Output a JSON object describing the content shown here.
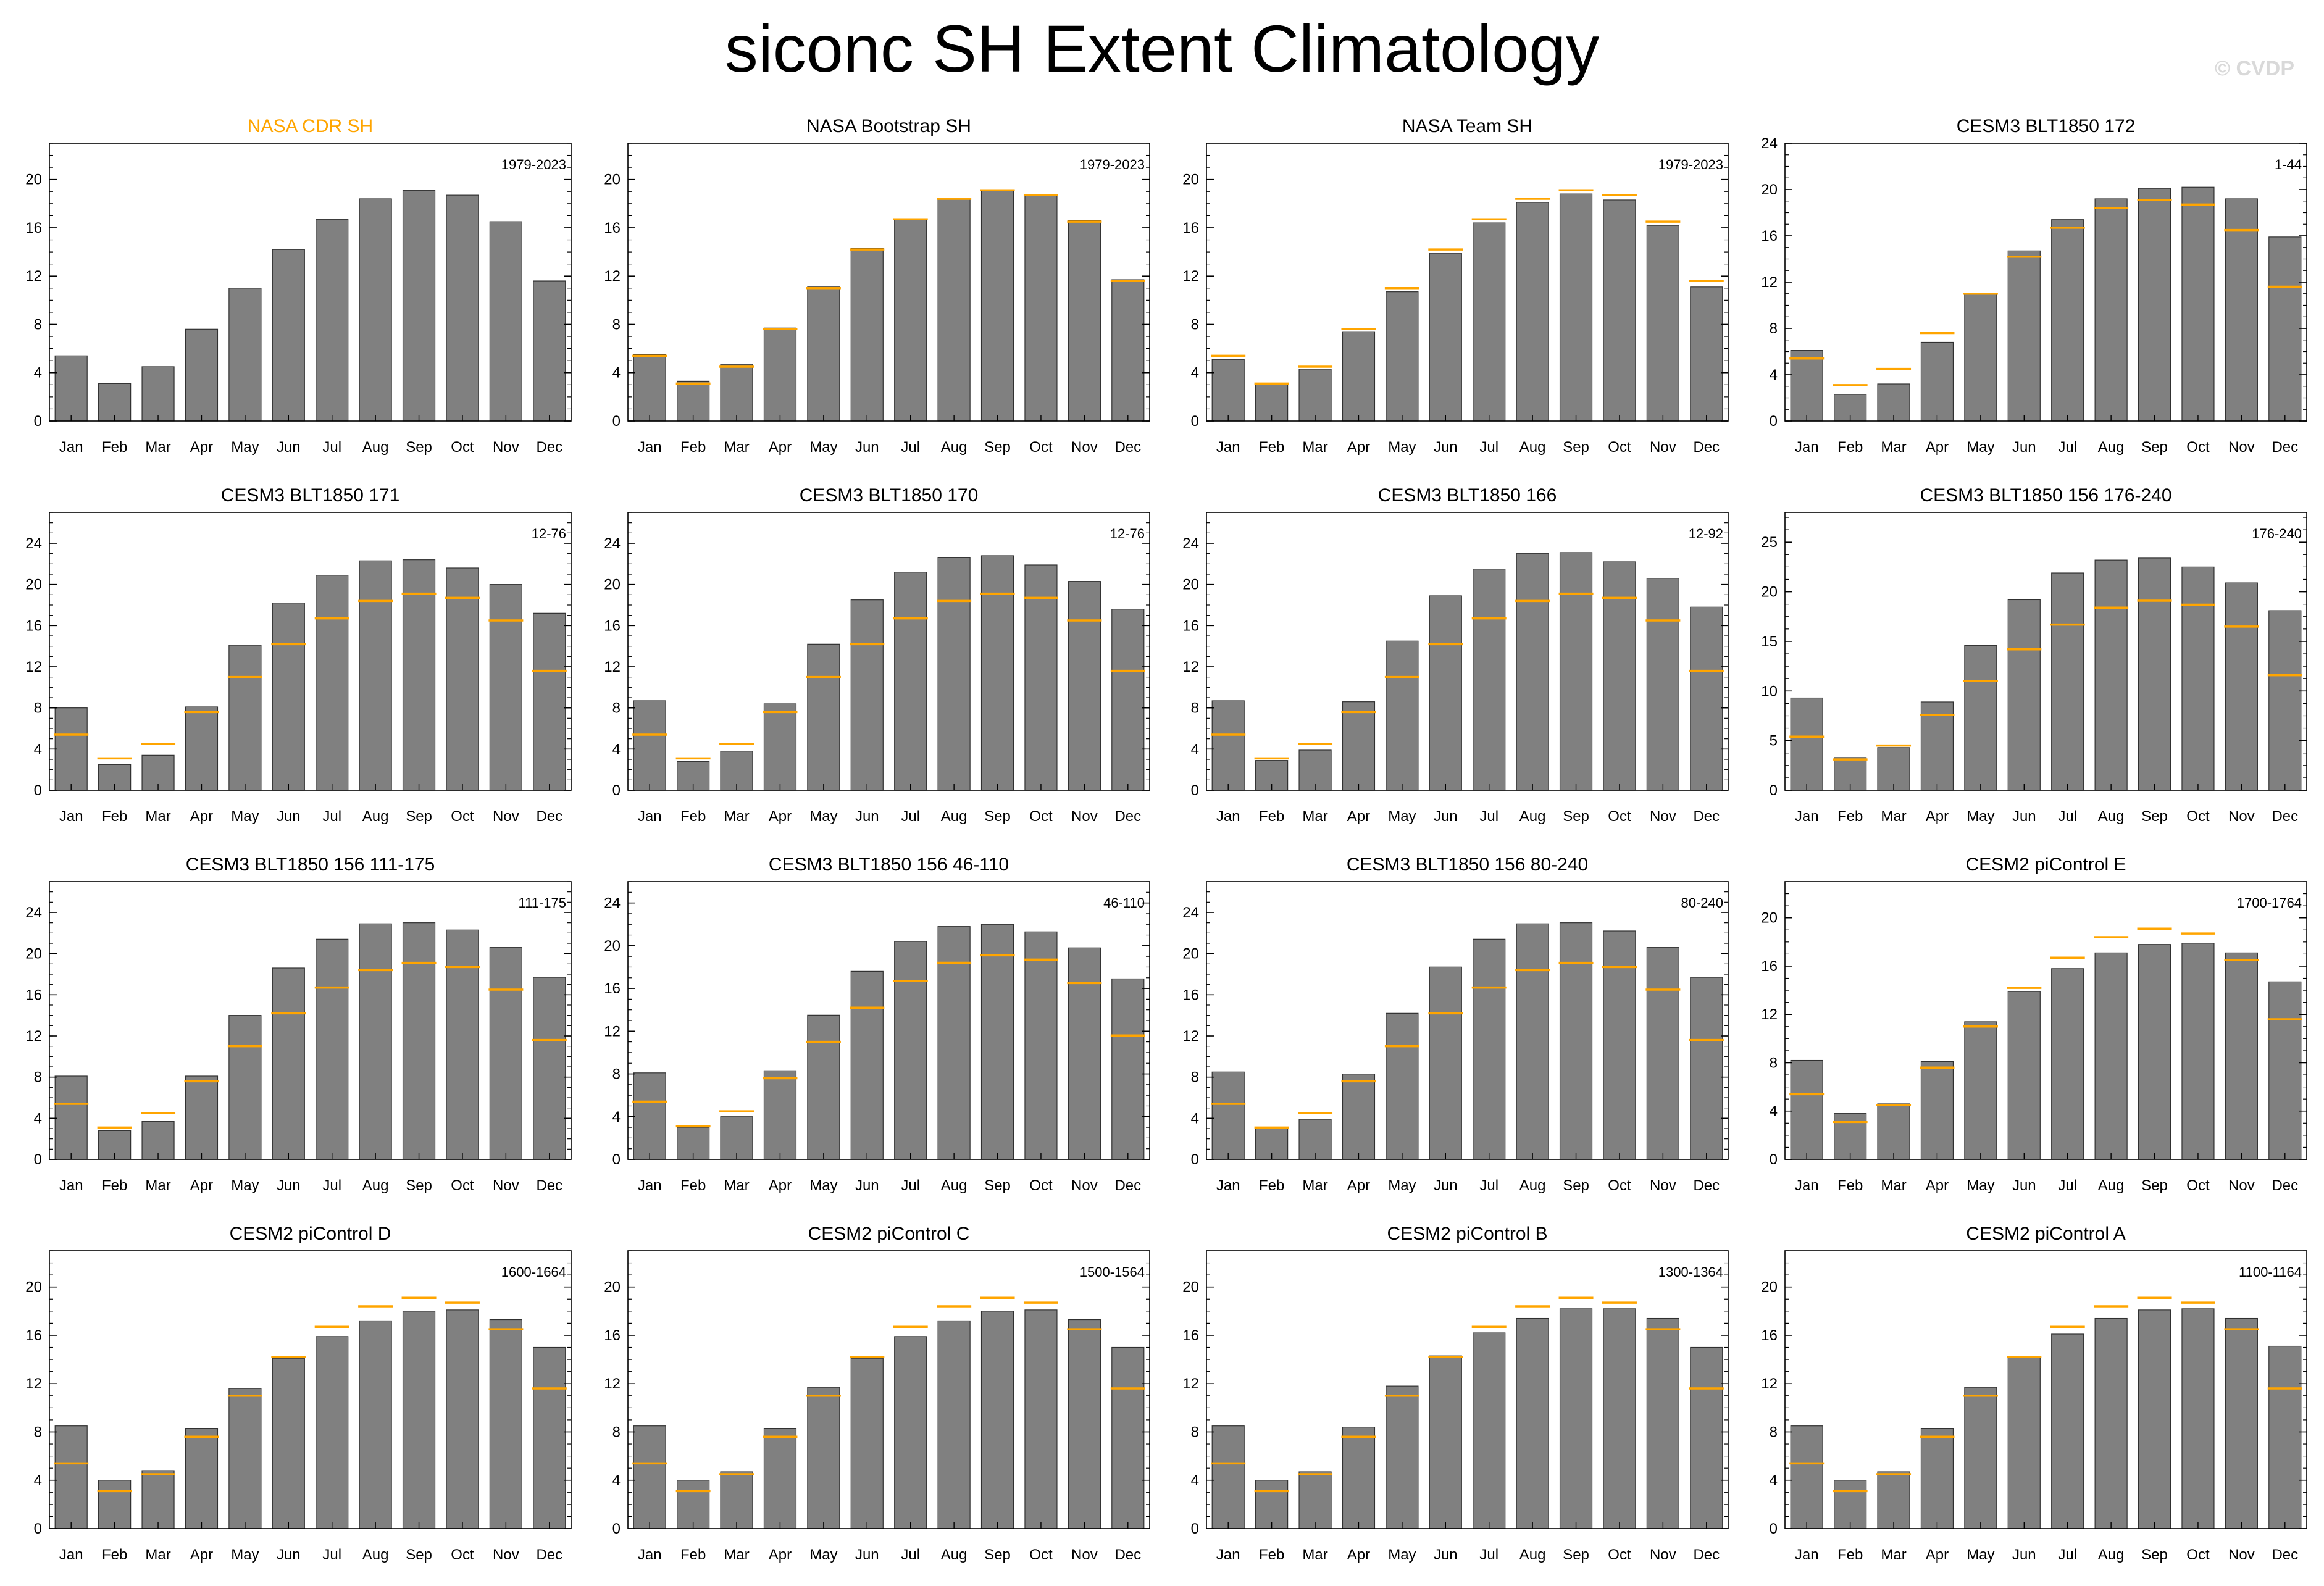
{
  "title": "siconc SH Extent Climatology",
  "watermark": "© CVDP",
  "colors": {
    "bar": "#808080",
    "bar_edge": "#303030",
    "reference": "#ffa500",
    "highlight_title": "#ffa500"
  },
  "months": [
    "Jan",
    "Feb",
    "Mar",
    "Apr",
    "May",
    "Jun",
    "Jul",
    "Aug",
    "Sep",
    "Oct",
    "Nov",
    "Dec"
  ],
  "reference_series": "NASA CDR SH",
  "chart_data": [
    {
      "type": "bar",
      "title": "NASA CDR SH",
      "title_highlight": true,
      "period": "1979-2023",
      "ylim": [
        0,
        23
      ],
      "yticks": [
        0,
        4,
        8,
        12,
        16,
        20
      ],
      "values": [
        5.4,
        3.1,
        4.5,
        7.6,
        11.0,
        14.2,
        16.7,
        18.4,
        19.1,
        18.7,
        16.5,
        11.6
      ],
      "reference": null
    },
    {
      "type": "bar",
      "title": "NASA Bootstrap SH",
      "period": "1979-2023",
      "ylim": [
        0,
        23
      ],
      "yticks": [
        0,
        4,
        8,
        12,
        16,
        20
      ],
      "values": [
        5.5,
        3.3,
        4.7,
        7.7,
        11.1,
        14.3,
        16.7,
        18.4,
        19.1,
        18.7,
        16.6,
        11.7
      ],
      "reference": [
        5.4,
        3.1,
        4.5,
        7.6,
        11.0,
        14.2,
        16.7,
        18.4,
        19.1,
        18.7,
        16.5,
        11.6
      ]
    },
    {
      "type": "bar",
      "title": "NASA Team SH",
      "period": "1979-2023",
      "ylim": [
        0,
        23
      ],
      "yticks": [
        0,
        4,
        8,
        12,
        16,
        20
      ],
      "values": [
        5.1,
        3.0,
        4.3,
        7.4,
        10.7,
        13.9,
        16.4,
        18.1,
        18.8,
        18.3,
        16.2,
        11.1
      ],
      "reference": [
        5.4,
        3.1,
        4.5,
        7.6,
        11.0,
        14.2,
        16.7,
        18.4,
        19.1,
        18.7,
        16.5,
        11.6
      ]
    },
    {
      "type": "bar",
      "title": "CESM3 BLT1850 172",
      "period": "1-44",
      "ylim": [
        0,
        24
      ],
      "yticks": [
        0,
        4,
        8,
        12,
        16,
        20,
        24
      ],
      "values": [
        6.1,
        2.3,
        3.2,
        6.8,
        11.0,
        14.7,
        17.4,
        19.2,
        20.1,
        20.2,
        19.2,
        15.9
      ],
      "reference": [
        5.4,
        3.1,
        4.5,
        7.6,
        11.0,
        14.2,
        16.7,
        18.4,
        19.1,
        18.7,
        16.5,
        11.6
      ]
    },
    {
      "type": "bar",
      "title": "CESM3 BLT1850 171",
      "period": "12-76",
      "ylim": [
        0,
        27
      ],
      "yticks": [
        0,
        4,
        8,
        12,
        16,
        20,
        24
      ],
      "values": [
        8.0,
        2.5,
        3.4,
        8.1,
        14.1,
        18.2,
        20.9,
        22.3,
        22.4,
        21.6,
        20.0,
        17.2
      ],
      "reference": [
        5.4,
        3.1,
        4.5,
        7.6,
        11.0,
        14.2,
        16.7,
        18.4,
        19.1,
        18.7,
        16.5,
        11.6
      ]
    },
    {
      "type": "bar",
      "title": "CESM3 BLT1850 170",
      "period": "12-76",
      "ylim": [
        0,
        27
      ],
      "yticks": [
        0,
        4,
        8,
        12,
        16,
        20,
        24
      ],
      "values": [
        8.7,
        2.8,
        3.8,
        8.4,
        14.2,
        18.5,
        21.2,
        22.6,
        22.8,
        21.9,
        20.3,
        17.6
      ],
      "reference": [
        5.4,
        3.1,
        4.5,
        7.6,
        11.0,
        14.2,
        16.7,
        18.4,
        19.1,
        18.7,
        16.5,
        11.6
      ]
    },
    {
      "type": "bar",
      "title": "CESM3 BLT1850 166",
      "period": "12-92",
      "ylim": [
        0,
        27
      ],
      "yticks": [
        0,
        4,
        8,
        12,
        16,
        20,
        24
      ],
      "values": [
        8.7,
        2.9,
        3.9,
        8.6,
        14.5,
        18.9,
        21.5,
        23.0,
        23.1,
        22.2,
        20.6,
        17.8
      ],
      "reference": [
        5.4,
        3.1,
        4.5,
        7.6,
        11.0,
        14.2,
        16.7,
        18.4,
        19.1,
        18.7,
        16.5,
        11.6
      ]
    },
    {
      "type": "bar",
      "title": "CESM3 BLT1850 156 176-240",
      "period": "176-240",
      "ylim": [
        0,
        28
      ],
      "yticks": [
        0,
        5,
        10,
        15,
        20,
        25
      ],
      "values": [
        9.3,
        3.3,
        4.3,
        8.9,
        14.6,
        19.2,
        21.9,
        23.2,
        23.4,
        22.5,
        20.9,
        18.1
      ],
      "reference": [
        5.4,
        3.1,
        4.5,
        7.6,
        11.0,
        14.2,
        16.7,
        18.4,
        19.1,
        18.7,
        16.5,
        11.6
      ]
    },
    {
      "type": "bar",
      "title": "CESM3 BLT1850 156 111-175",
      "period": "111-175",
      "ylim": [
        0,
        27
      ],
      "yticks": [
        0,
        4,
        8,
        12,
        16,
        20,
        24
      ],
      "values": [
        8.1,
        2.8,
        3.7,
        8.1,
        14.0,
        18.6,
        21.4,
        22.9,
        23.0,
        22.3,
        20.6,
        17.7
      ],
      "reference": [
        5.4,
        3.1,
        4.5,
        7.6,
        11.0,
        14.2,
        16.7,
        18.4,
        19.1,
        18.7,
        16.5,
        11.6
      ]
    },
    {
      "type": "bar",
      "title": "CESM3 BLT1850 156 46-110",
      "period": "46-110",
      "ylim": [
        0,
        26
      ],
      "yticks": [
        0,
        4,
        8,
        12,
        16,
        20,
        24
      ],
      "values": [
        8.1,
        3.0,
        4.0,
        8.3,
        13.5,
        17.6,
        20.4,
        21.8,
        22.0,
        21.3,
        19.8,
        16.9
      ],
      "reference": [
        5.4,
        3.1,
        4.5,
        7.6,
        11.0,
        14.2,
        16.7,
        18.4,
        19.1,
        18.7,
        16.5,
        11.6
      ]
    },
    {
      "type": "bar",
      "title": "CESM3 BLT1850 156 80-240",
      "period": "80-240",
      "ylim": [
        0,
        27
      ],
      "yticks": [
        0,
        4,
        8,
        12,
        16,
        20,
        24
      ],
      "values": [
        8.5,
        3.0,
        3.9,
        8.3,
        14.2,
        18.7,
        21.4,
        22.9,
        23.0,
        22.2,
        20.6,
        17.7
      ],
      "reference": [
        5.4,
        3.1,
        4.5,
        7.6,
        11.0,
        14.2,
        16.7,
        18.4,
        19.1,
        18.7,
        16.5,
        11.6
      ]
    },
    {
      "type": "bar",
      "title": "CESM2 piControl E",
      "period": "1700-1764",
      "ylim": [
        0,
        23
      ],
      "yticks": [
        0,
        4,
        8,
        12,
        16,
        20
      ],
      "values": [
        8.2,
        3.8,
        4.6,
        8.1,
        11.4,
        13.9,
        15.8,
        17.1,
        17.8,
        17.9,
        17.1,
        14.7
      ],
      "reference": [
        5.4,
        3.1,
        4.5,
        7.6,
        11.0,
        14.2,
        16.7,
        18.4,
        19.1,
        18.7,
        16.5,
        11.6
      ]
    },
    {
      "type": "bar",
      "title": "CESM2 piControl D",
      "period": "1600-1664",
      "ylim": [
        0,
        23
      ],
      "yticks": [
        0,
        4,
        8,
        12,
        16,
        20
      ],
      "values": [
        8.5,
        4.0,
        4.8,
        8.3,
        11.6,
        14.1,
        15.9,
        17.2,
        18.0,
        18.1,
        17.3,
        15.0
      ],
      "reference": [
        5.4,
        3.1,
        4.5,
        7.6,
        11.0,
        14.2,
        16.7,
        18.4,
        19.1,
        18.7,
        16.5,
        11.6
      ]
    },
    {
      "type": "bar",
      "title": "CESM2 piControl C",
      "period": "1500-1564",
      "ylim": [
        0,
        23
      ],
      "yticks": [
        0,
        4,
        8,
        12,
        16,
        20
      ],
      "values": [
        8.5,
        4.0,
        4.7,
        8.3,
        11.7,
        14.1,
        15.9,
        17.2,
        18.0,
        18.1,
        17.3,
        15.0
      ],
      "reference": [
        5.4,
        3.1,
        4.5,
        7.6,
        11.0,
        14.2,
        16.7,
        18.4,
        19.1,
        18.7,
        16.5,
        11.6
      ]
    },
    {
      "type": "bar",
      "title": "CESM2 piControl B",
      "period": "1300-1364",
      "ylim": [
        0,
        23
      ],
      "yticks": [
        0,
        4,
        8,
        12,
        16,
        20
      ],
      "values": [
        8.5,
        4.0,
        4.7,
        8.4,
        11.8,
        14.3,
        16.2,
        17.4,
        18.2,
        18.2,
        17.4,
        15.0
      ],
      "reference": [
        5.4,
        3.1,
        4.5,
        7.6,
        11.0,
        14.2,
        16.7,
        18.4,
        19.1,
        18.7,
        16.5,
        11.6
      ]
    },
    {
      "type": "bar",
      "title": "CESM2 piControl A",
      "period": "1100-1164",
      "ylim": [
        0,
        23
      ],
      "yticks": [
        0,
        4,
        8,
        12,
        16,
        20
      ],
      "values": [
        8.5,
        4.0,
        4.7,
        8.3,
        11.7,
        14.2,
        16.1,
        17.4,
        18.1,
        18.2,
        17.4,
        15.1
      ],
      "reference": [
        5.4,
        3.1,
        4.5,
        7.6,
        11.0,
        14.2,
        16.7,
        18.4,
        19.1,
        18.7,
        16.5,
        11.6
      ]
    }
  ]
}
